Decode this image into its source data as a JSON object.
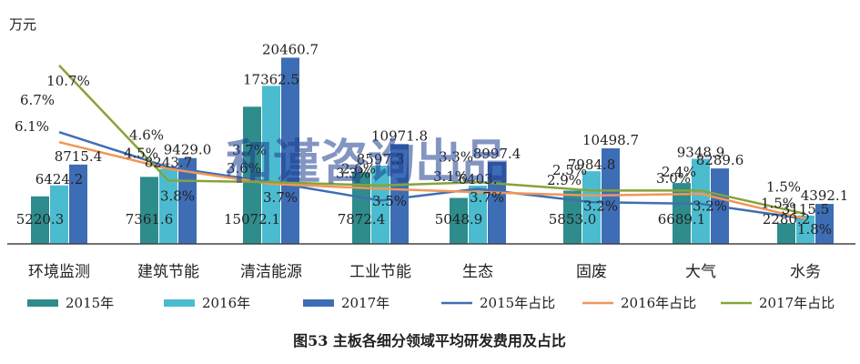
{
  "watermark": "和谨咨询出品",
  "caption": "图53 主板各细分领域平均研发费用及占比",
  "chart_data": {
    "type": "bar",
    "ylabel": "万元",
    "ylim": [
      0,
      22000
    ],
    "categories": [
      "环境监测",
      "建筑节能",
      "清洁能源",
      "工业节能",
      "生态",
      "固废",
      "大气",
      "水务"
    ],
    "series": [
      {
        "name": "2015年",
        "kind": "bar",
        "color": "#2e8c8c",
        "values": [
          5220.3,
          7361.6,
          15072.1,
          7872.4,
          5048.9,
          5853.0,
          6689.1,
          2280.2
        ],
        "labels": [
          "5220.3",
          "7361.6",
          "15072.1",
          "7872.4",
          "5048.9",
          "5853.0",
          "6689.1",
          "2280.2"
        ]
      },
      {
        "name": "2016年",
        "kind": "bar",
        "color": "#4bbcd0",
        "values": [
          6424.2,
          8243.7,
          17362.5,
          8597.3,
          6403.0,
          7984.8,
          9348.9,
          3115.5
        ],
        "labels": [
          "6424.2",
          "8243.7",
          "17362.5",
          "8597.3",
          "6403.",
          "7984.8",
          "9348.9",
          "3115.5"
        ]
      },
      {
        "name": "2017年",
        "kind": "bar",
        "color": "#3d6db5",
        "values": [
          8715.4,
          9429.0,
          20460.7,
          10971.8,
          8997.4,
          10498.7,
          8289.6,
          4392.1
        ],
        "labels": [
          "8715.4",
          "9429.0",
          "20460.7",
          "10971.8",
          "8997.4",
          "10498.7",
          "8289.6",
          "4392.1"
        ]
      },
      {
        "name": "2015年占比",
        "kind": "line",
        "color": "#3e6fb3",
        "values": [
          6.7,
          4.6,
          3.7,
          2.6,
          3.3,
          2.5,
          2.4,
          1.5
        ],
        "labels": [
          "6.7%",
          "4.6%",
          "3.7%",
          "2.6%",
          "3.3%",
          "2.5%",
          "2.4%",
          "1.5%"
        ]
      },
      {
        "name": "2016年占比",
        "kind": "line",
        "color": "#f0975a",
        "values": [
          6.1,
          4.5,
          3.6,
          3.3,
          3.1,
          2.9,
          3.0,
          1.5
        ],
        "labels": [
          "6.1%",
          "4.5%",
          "3.6%",
          "3.3%",
          "3.1%",
          "2.9%",
          "3.0%",
          "1.5%"
        ]
      },
      {
        "name": "2017年占比",
        "kind": "line",
        "color": "#86a33a",
        "values": [
          10.7,
          3.8,
          3.7,
          3.5,
          3.7,
          3.2,
          3.2,
          1.8
        ],
        "labels": [
          "10.7%",
          "3.8%",
          "3.7%",
          "3.5%",
          "3.7%",
          "3.2%",
          "3.2%",
          "1.8%"
        ]
      }
    ],
    "legend_position": "bottom",
    "grid": false
  }
}
